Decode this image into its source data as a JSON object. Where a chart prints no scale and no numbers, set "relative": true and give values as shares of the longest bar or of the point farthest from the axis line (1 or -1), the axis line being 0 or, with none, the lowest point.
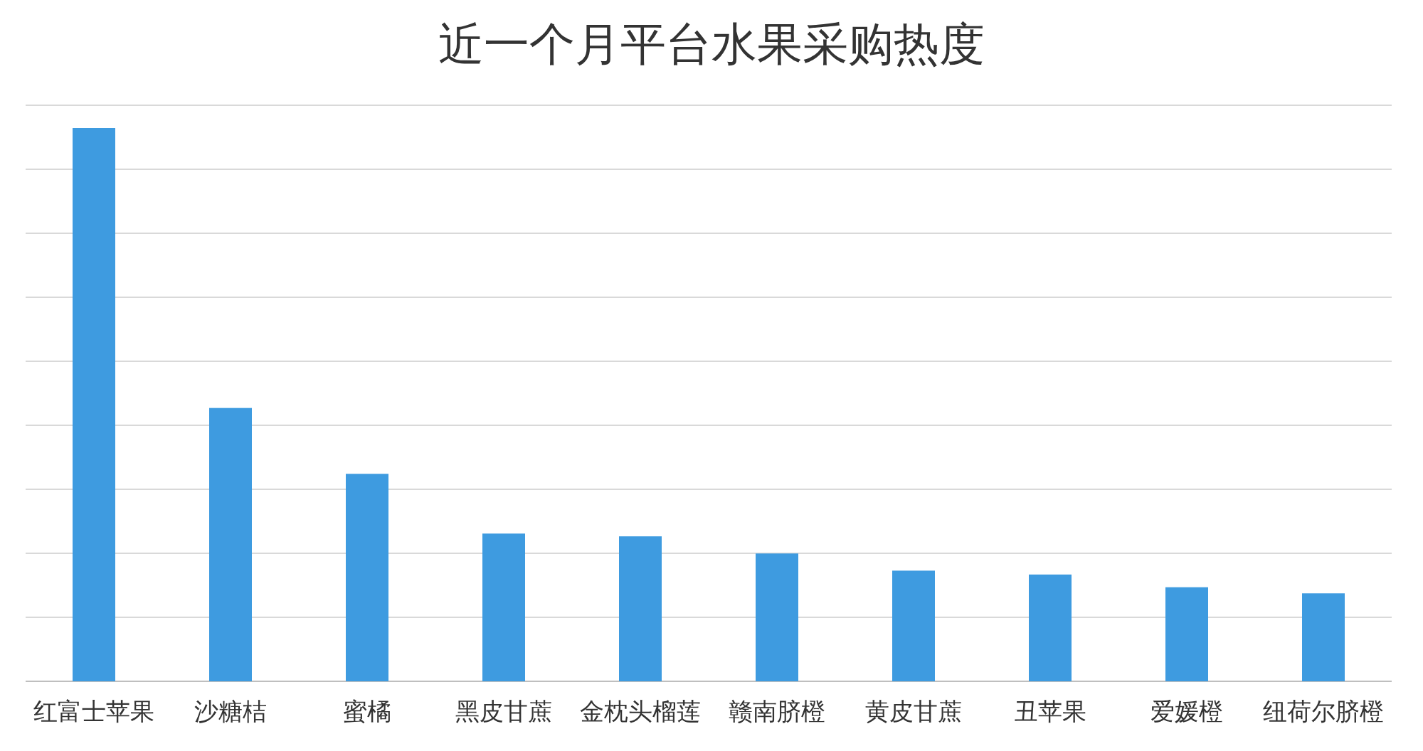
{
  "chart_data": {
    "type": "bar",
    "title": "近一个月平台水果采购热度",
    "categories": [
      "红富士苹果",
      "沙糖桔",
      "蜜橘",
      "黑皮甘蔗",
      "金枕头榴莲",
      "赣南脐橙",
      "黄皮甘蔗",
      "丑苹果",
      "爱媛橙",
      "纽荷尔脐橙"
    ],
    "values": [
      1,
      0.494,
      0.375,
      0.267,
      0.262,
      0.231,
      0.2,
      0.193,
      0.17,
      0.159
    ],
    "color": "#3e9be0",
    "relative": true,
    "grid": "y"
  }
}
